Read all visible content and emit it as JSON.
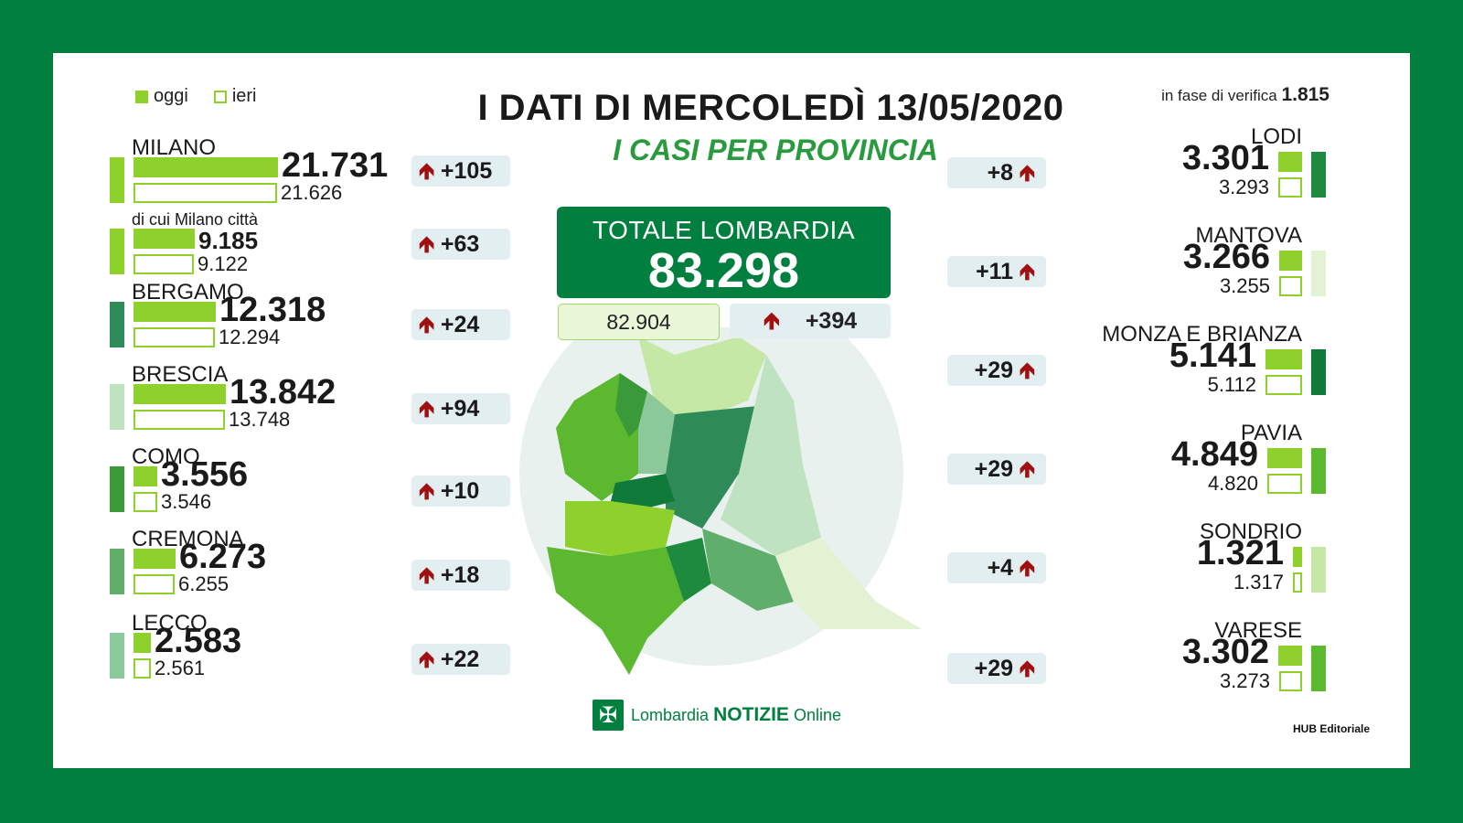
{
  "legend": {
    "today": "oggi",
    "yesterday": "ieri"
  },
  "title": "I DATI DI MERCOLEDÌ 13/05/2020",
  "subtitle": "I CASI PER PROVINCIA",
  "verification": {
    "label": "in fase di verifica",
    "value": "1.815"
  },
  "total": {
    "label": "TOTALE LOMBARDIA",
    "value": "83.298",
    "yesterday": "82.904",
    "delta": "+394"
  },
  "colors": {
    "frame": "#017f3e",
    "bar_today": "#8fd12c",
    "arrow": "#a01010",
    "chip": "#e3eef1"
  },
  "chart_data": {
    "type": "bar",
    "title": "I CASI PER PROVINCIA",
    "series": [
      {
        "name": "oggi",
        "values": [
          21731,
          9185,
          12318,
          13842,
          3556,
          6273,
          2583,
          3301,
          3266,
          5141,
          4849,
          1321,
          3302
        ]
      },
      {
        "name": "ieri",
        "values": [
          21626,
          9122,
          12294,
          13748,
          3546,
          6255,
          2561,
          3293,
          3255,
          5112,
          4820,
          1317,
          3273
        ]
      }
    ],
    "categories": [
      "MILANO",
      "di cui Milano città",
      "BERGAMO",
      "BRESCIA",
      "COMO",
      "CREMONA",
      "LECCO",
      "LODI",
      "MANTOVA",
      "MONZA E BRIANZA",
      "PAVIA",
      "SONDRIO",
      "VARESE"
    ],
    "deltas": [
      "+105",
      "+63",
      "+24",
      "+94",
      "+10",
      "+18",
      "+22",
      "+8",
      "+11",
      "+29",
      "+29",
      "+4",
      "+29"
    ]
  },
  "left": [
    {
      "name": "MILANO",
      "today": "21.731",
      "yesterday": "21.626",
      "delta": "+105",
      "side": "#8fd12c"
    },
    {
      "name": "di cui Milano città",
      "today": "9.185",
      "yesterday": "9.122",
      "delta": "+63",
      "side": "#8fd12c"
    },
    {
      "name": "BERGAMO",
      "today": "12.318",
      "yesterday": "12.294",
      "delta": "+24",
      "side": "#2e8b57"
    },
    {
      "name": "BRESCIA",
      "today": "13.842",
      "yesterday": "13.748",
      "delta": "+94",
      "side": "#bfe3c0"
    },
    {
      "name": "COMO",
      "today": "3.556",
      "yesterday": "3.546",
      "delta": "+10",
      "side": "#3a9a3a"
    },
    {
      "name": "CREMONA",
      "today": "6.273",
      "yesterday": "6.255",
      "delta": "+18",
      "side": "#5fae6c"
    },
    {
      "name": "LECCO",
      "today": "2.583",
      "yesterday": "2.561",
      "delta": "+22",
      "side": "#8cc99a"
    }
  ],
  "right": [
    {
      "name": "LODI",
      "today": "3.301",
      "yesterday": "3.293",
      "delta": "+8",
      "side": "#1e8a3e"
    },
    {
      "name": "MANTOVA",
      "today": "3.266",
      "yesterday": "3.255",
      "delta": "+11",
      "side": "#e4f2d4"
    },
    {
      "name": "MONZA E BRIANZA",
      "today": "5.141",
      "yesterday": "5.112",
      "delta": "+29",
      "side": "#107a3a"
    },
    {
      "name": "PAVIA",
      "today": "4.849",
      "yesterday": "4.820",
      "delta": "+29",
      "side": "#5cb82e"
    },
    {
      "name": "SONDRIO",
      "today": "1.321",
      "yesterday": "1.317",
      "delta": "+4",
      "side": "#c6e8a6"
    },
    {
      "name": "VARESE",
      "today": "3.302",
      "yesterday": "3.273",
      "delta": "+29",
      "side": "#5cb82e"
    }
  ],
  "logo": {
    "part1": "Lombardia",
    "part2": "NOTIZIE",
    "part3": "Online"
  },
  "hub": "HUB Editoriale"
}
